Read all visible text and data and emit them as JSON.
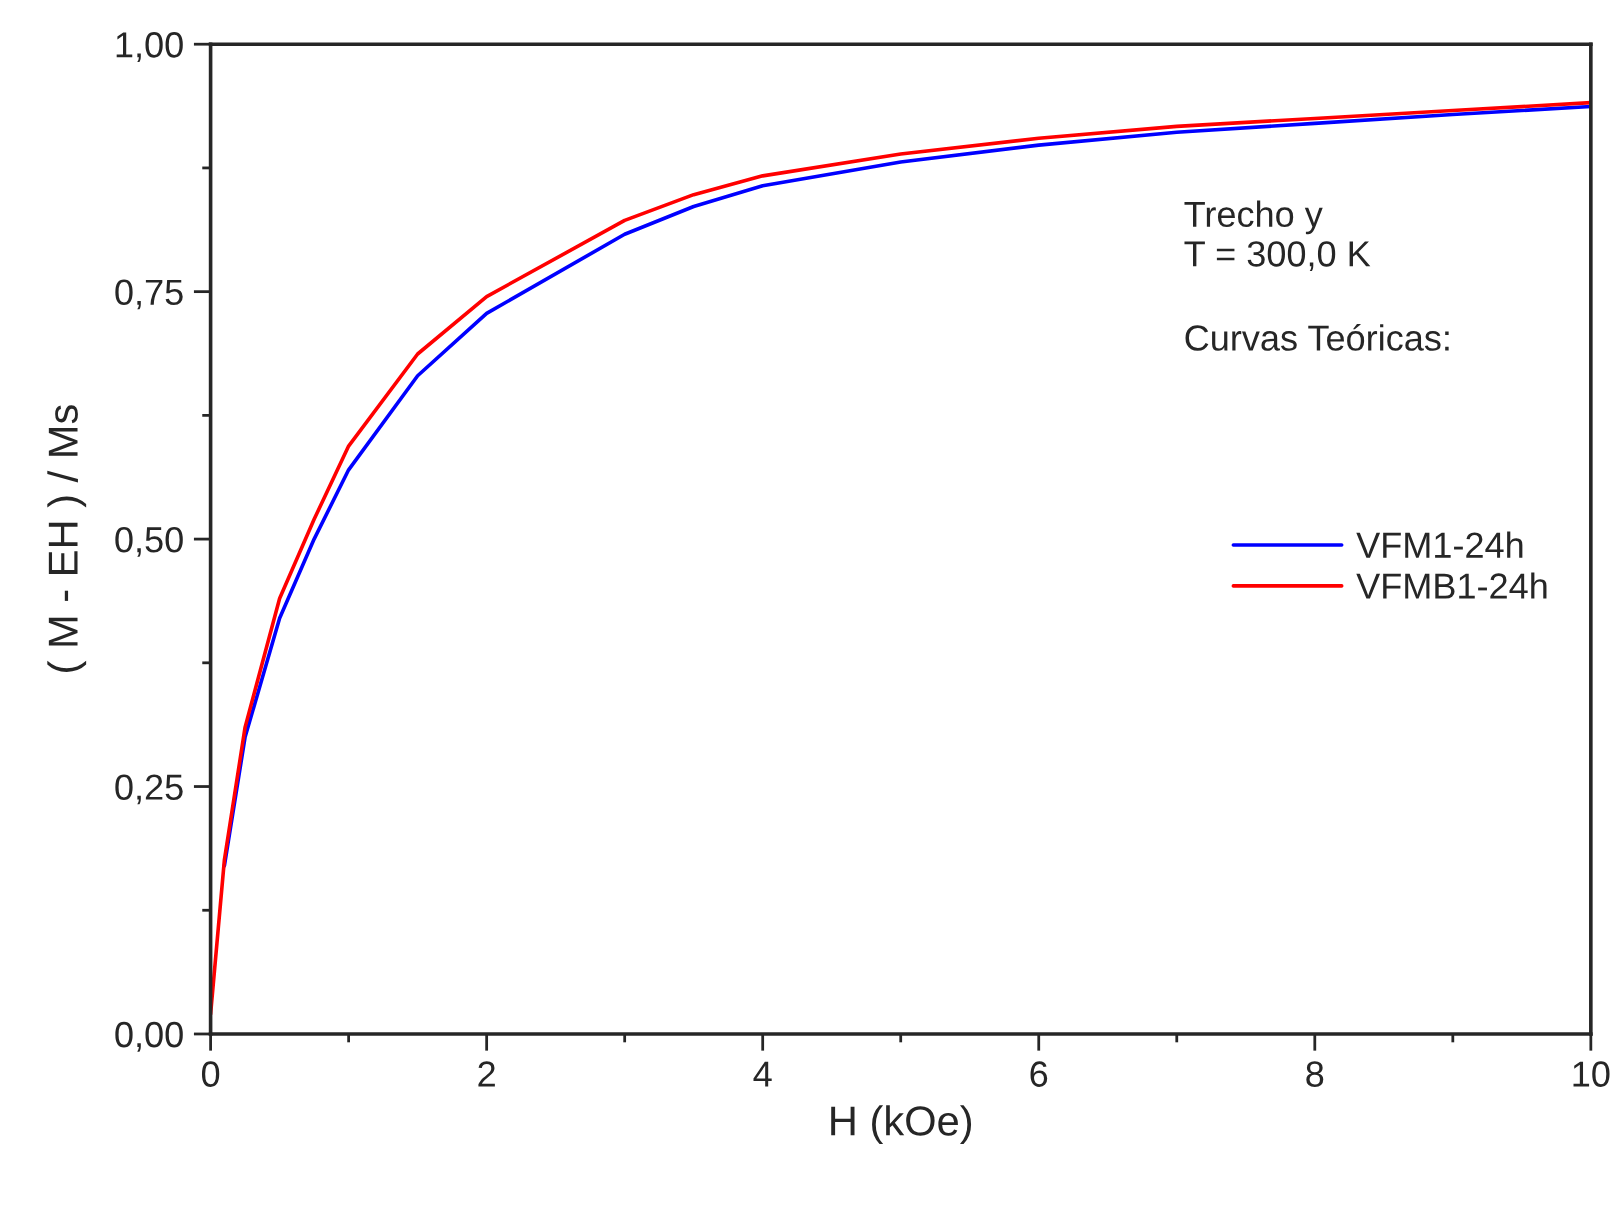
{
  "chart_data": {
    "type": "line",
    "xlabel": "H (kOe)",
    "ylabel": "( M - EH ) / Ms",
    "x": [
      0,
      0.1,
      0.25,
      0.5,
      0.75,
      1,
      1.5,
      2,
      3,
      3.5,
      4,
      5,
      6,
      7,
      8,
      9,
      10
    ],
    "series": [
      {
        "name": "VFM1-24h",
        "color": "#0000ff",
        "values": [
          null,
          0.17,
          0.3,
          0.42,
          0.5,
          0.57,
          0.665,
          0.728,
          0.808,
          0.836,
          0.857,
          0.881,
          0.898,
          0.911,
          0.92,
          0.929,
          0.937
        ]
      },
      {
        "name": "VFMB1-24h",
        "color": "#ff0000",
        "values": [
          0.02,
          0.176,
          0.31,
          0.44,
          0.52,
          0.594,
          0.687,
          0.745,
          0.822,
          0.848,
          0.867,
          0.889,
          0.905,
          0.917,
          0.925,
          0.933,
          0.941
        ]
      }
    ],
    "xlim": [
      0,
      10
    ],
    "xticks": [
      0,
      {
        "value": 1,
        "label": null
      },
      2,
      {
        "value": 3,
        "label": null
      },
      4,
      {
        "value": 5,
        "label": null
      },
      6,
      {
        "value": 7,
        "label": null
      },
      8,
      {
        "value": 9,
        "label": null
      },
      10
    ],
    "ylim": [
      0,
      1
    ],
    "yticks": [
      {
        "value": 0,
        "label": "0,00"
      },
      {
        "value": 0.125,
        "label": null
      },
      {
        "value": 0.25,
        "label": "0,25"
      },
      {
        "value": 0.375,
        "label": null
      },
      {
        "value": 0.5,
        "label": "0,50"
      },
      {
        "value": 0.625,
        "label": null
      },
      {
        "value": 0.75,
        "label": "0,75"
      },
      {
        "value": 0.875,
        "label": null
      },
      {
        "value": 1,
        "label": "1,00"
      }
    ],
    "annotations": [
      "Trecho y",
      "T = 300,0 K",
      "Curvas Teóricas:"
    ],
    "legend": "right",
    "grid": false,
    "marker": "none",
    "line_style": "solid"
  }
}
